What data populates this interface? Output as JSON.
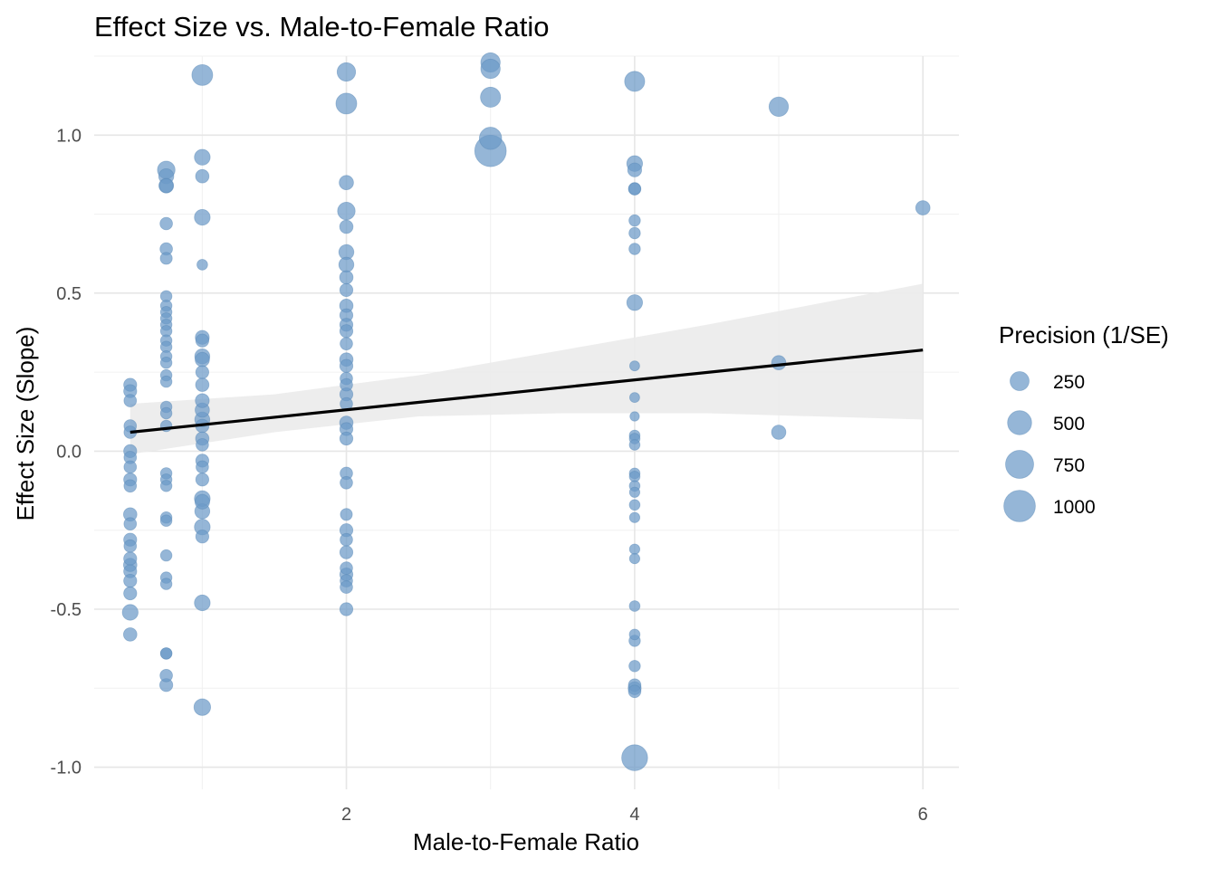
{
  "chart_data": {
    "type": "scatter",
    "title": "Effect Size vs. Male-to-Female Ratio",
    "xlabel": "Male-to-Female Ratio",
    "ylabel": "Effect Size (Slope)",
    "xlim": [
      0.25,
      6.25
    ],
    "ylim": [
      -1.07,
      1.25
    ],
    "x_ticks": [
      2,
      4,
      6
    ],
    "x_tick_labels": [
      "2",
      "4",
      "6"
    ],
    "y_ticks": [
      -1.0,
      -0.5,
      0.0,
      0.5,
      1.0
    ],
    "y_tick_labels": [
      "-1.0",
      "-0.5",
      "0.0",
      "0.5",
      "1.0"
    ],
    "grid": true,
    "point_color": "#6C9AC7",
    "fit_line_color": "#000000",
    "ribbon_color": "#EBEBEB",
    "size_legend": {
      "title": "Precision (1/SE)",
      "position": "right",
      "entries": [
        {
          "label": "250",
          "value": 250
        },
        {
          "label": "500",
          "value": 500
        },
        {
          "label": "750",
          "value": 750
        },
        {
          "label": "1000",
          "value": 1000
        }
      ]
    },
    "fit": {
      "x": [
        0.5,
        6.0
      ],
      "y": [
        0.06,
        0.32
      ],
      "ribbon": [
        {
          "x": 0.5,
          "lower": -0.01,
          "upper": 0.15
        },
        {
          "x": 1.5,
          "lower": 0.06,
          "upper": 0.18
        },
        {
          "x": 2.5,
          "lower": 0.11,
          "upper": 0.24
        },
        {
          "x": 3.5,
          "lower": 0.12,
          "upper": 0.32
        },
        {
          "x": 4.5,
          "lower": 0.12,
          "upper": 0.4
        },
        {
          "x": 6.0,
          "lower": 0.1,
          "upper": 0.53
        }
      ]
    },
    "points": [
      {
        "x": 0.5,
        "y": 0.21,
        "p": 70
      },
      {
        "x": 0.5,
        "y": 0.19,
        "p": 70
      },
      {
        "x": 0.5,
        "y": 0.16,
        "p": 60
      },
      {
        "x": 0.5,
        "y": 0.08,
        "p": 60
      },
      {
        "x": 0.5,
        "y": 0.06,
        "p": 60
      },
      {
        "x": 0.5,
        "y": 0.0,
        "p": 70
      },
      {
        "x": 0.5,
        "y": -0.02,
        "p": 60
      },
      {
        "x": 0.5,
        "y": -0.05,
        "p": 60
      },
      {
        "x": 0.5,
        "y": -0.09,
        "p": 70
      },
      {
        "x": 0.5,
        "y": -0.11,
        "p": 60
      },
      {
        "x": 0.5,
        "y": -0.2,
        "p": 80
      },
      {
        "x": 0.5,
        "y": -0.23,
        "p": 60
      },
      {
        "x": 0.5,
        "y": -0.28,
        "p": 70
      },
      {
        "x": 0.5,
        "y": -0.3,
        "p": 60
      },
      {
        "x": 0.5,
        "y": -0.34,
        "p": 70
      },
      {
        "x": 0.5,
        "y": -0.36,
        "p": 80
      },
      {
        "x": 0.5,
        "y": -0.38,
        "p": 70
      },
      {
        "x": 0.5,
        "y": -0.41,
        "p": 70
      },
      {
        "x": 0.5,
        "y": -0.45,
        "p": 70
      },
      {
        "x": 0.5,
        "y": -0.51,
        "p": 140
      },
      {
        "x": 0.5,
        "y": -0.58,
        "p": 80
      },
      {
        "x": 0.75,
        "y": 0.89,
        "p": 200
      },
      {
        "x": 0.75,
        "y": 0.87,
        "p": 120
      },
      {
        "x": 0.75,
        "y": 0.84,
        "p": 110
      },
      {
        "x": 0.75,
        "y": 0.84,
        "p": 90
      },
      {
        "x": 0.75,
        "y": 0.72,
        "p": 60
      },
      {
        "x": 0.75,
        "y": 0.64,
        "p": 60
      },
      {
        "x": 0.75,
        "y": 0.61,
        "p": 50
      },
      {
        "x": 0.75,
        "y": 0.49,
        "p": 40
      },
      {
        "x": 0.75,
        "y": 0.46,
        "p": 40
      },
      {
        "x": 0.75,
        "y": 0.44,
        "p": 40
      },
      {
        "x": 0.75,
        "y": 0.42,
        "p": 40
      },
      {
        "x": 0.75,
        "y": 0.4,
        "p": 40
      },
      {
        "x": 0.75,
        "y": 0.38,
        "p": 40
      },
      {
        "x": 0.75,
        "y": 0.35,
        "p": 40
      },
      {
        "x": 0.75,
        "y": 0.33,
        "p": 40
      },
      {
        "x": 0.75,
        "y": 0.3,
        "p": 40
      },
      {
        "x": 0.75,
        "y": 0.28,
        "p": 40
      },
      {
        "x": 0.75,
        "y": 0.24,
        "p": 40
      },
      {
        "x": 0.75,
        "y": 0.22,
        "p": 40
      },
      {
        "x": 0.75,
        "y": 0.14,
        "p": 40
      },
      {
        "x": 0.75,
        "y": 0.12,
        "p": 40
      },
      {
        "x": 0.75,
        "y": 0.08,
        "p": 40
      },
      {
        "x": 0.75,
        "y": -0.07,
        "p": 40
      },
      {
        "x": 0.75,
        "y": -0.09,
        "p": 40
      },
      {
        "x": 0.75,
        "y": -0.11,
        "p": 40
      },
      {
        "x": 0.75,
        "y": -0.21,
        "p": 40
      },
      {
        "x": 0.75,
        "y": -0.22,
        "p": 40
      },
      {
        "x": 0.75,
        "y": -0.33,
        "p": 40
      },
      {
        "x": 0.75,
        "y": -0.4,
        "p": 40
      },
      {
        "x": 0.75,
        "y": -0.42,
        "p": 40
      },
      {
        "x": 0.75,
        "y": -0.64,
        "p": 40
      },
      {
        "x": 0.75,
        "y": -0.64,
        "p": 40
      },
      {
        "x": 0.75,
        "y": -0.71,
        "p": 60
      },
      {
        "x": 0.75,
        "y": -0.74,
        "p": 70
      },
      {
        "x": 1.0,
        "y": 1.19,
        "p": 330
      },
      {
        "x": 1.0,
        "y": 0.93,
        "p": 140
      },
      {
        "x": 1.0,
        "y": 0.87,
        "p": 80
      },
      {
        "x": 1.0,
        "y": 0.74,
        "p": 140
      },
      {
        "x": 1.0,
        "y": 0.59,
        "p": 30
      },
      {
        "x": 1.0,
        "y": 0.36,
        "p": 90
      },
      {
        "x": 1.0,
        "y": 0.35,
        "p": 70
      },
      {
        "x": 1.0,
        "y": 0.3,
        "p": 120
      },
      {
        "x": 1.0,
        "y": 0.29,
        "p": 100
      },
      {
        "x": 1.0,
        "y": 0.25,
        "p": 70
      },
      {
        "x": 1.0,
        "y": 0.21,
        "p": 80
      },
      {
        "x": 1.0,
        "y": 0.16,
        "p": 90
      },
      {
        "x": 1.0,
        "y": 0.13,
        "p": 100
      },
      {
        "x": 1.0,
        "y": 0.1,
        "p": 120
      },
      {
        "x": 1.0,
        "y": 0.08,
        "p": 80
      },
      {
        "x": 1.0,
        "y": 0.04,
        "p": 80
      },
      {
        "x": 1.0,
        "y": 0.02,
        "p": 60
      },
      {
        "x": 1.0,
        "y": -0.03,
        "p": 70
      },
      {
        "x": 1.0,
        "y": -0.05,
        "p": 60
      },
      {
        "x": 1.0,
        "y": -0.09,
        "p": 70
      },
      {
        "x": 1.0,
        "y": -0.15,
        "p": 140
      },
      {
        "x": 1.0,
        "y": -0.16,
        "p": 110
      },
      {
        "x": 1.0,
        "y": -0.19,
        "p": 120
      },
      {
        "x": 1.0,
        "y": -0.24,
        "p": 140
      },
      {
        "x": 1.0,
        "y": -0.27,
        "p": 70
      },
      {
        "x": 1.0,
        "y": -0.48,
        "p": 140
      },
      {
        "x": 1.0,
        "y": -0.81,
        "p": 170
      },
      {
        "x": 2.0,
        "y": 1.2,
        "p": 230
      },
      {
        "x": 2.0,
        "y": 1.1,
        "p": 330
      },
      {
        "x": 2.0,
        "y": 0.85,
        "p": 100
      },
      {
        "x": 2.0,
        "y": 0.76,
        "p": 200
      },
      {
        "x": 2.0,
        "y": 0.71,
        "p": 80
      },
      {
        "x": 2.0,
        "y": 0.63,
        "p": 120
      },
      {
        "x": 2.0,
        "y": 0.59,
        "p": 120
      },
      {
        "x": 2.0,
        "y": 0.55,
        "p": 80
      },
      {
        "x": 2.0,
        "y": 0.51,
        "p": 70
      },
      {
        "x": 2.0,
        "y": 0.46,
        "p": 80
      },
      {
        "x": 2.0,
        "y": 0.43,
        "p": 70
      },
      {
        "x": 2.0,
        "y": 0.4,
        "p": 70
      },
      {
        "x": 2.0,
        "y": 0.38,
        "p": 70
      },
      {
        "x": 2.0,
        "y": 0.34,
        "p": 60
      },
      {
        "x": 2.0,
        "y": 0.29,
        "p": 80
      },
      {
        "x": 2.0,
        "y": 0.27,
        "p": 70
      },
      {
        "x": 2.0,
        "y": 0.23,
        "p": 60
      },
      {
        "x": 2.0,
        "y": 0.21,
        "p": 60
      },
      {
        "x": 2.0,
        "y": 0.18,
        "p": 70
      },
      {
        "x": 2.0,
        "y": 0.15,
        "p": 60
      },
      {
        "x": 2.0,
        "y": 0.09,
        "p": 80
      },
      {
        "x": 2.0,
        "y": 0.07,
        "p": 70
      },
      {
        "x": 2.0,
        "y": 0.04,
        "p": 70
      },
      {
        "x": 2.0,
        "y": -0.07,
        "p": 60
      },
      {
        "x": 2.0,
        "y": -0.1,
        "p": 60
      },
      {
        "x": 2.0,
        "y": -0.2,
        "p": 50
      },
      {
        "x": 2.0,
        "y": -0.25,
        "p": 70
      },
      {
        "x": 2.0,
        "y": -0.28,
        "p": 60
      },
      {
        "x": 2.0,
        "y": -0.32,
        "p": 70
      },
      {
        "x": 2.0,
        "y": -0.37,
        "p": 60
      },
      {
        "x": 2.0,
        "y": -0.39,
        "p": 70
      },
      {
        "x": 2.0,
        "y": -0.41,
        "p": 60
      },
      {
        "x": 2.0,
        "y": -0.43,
        "p": 60
      },
      {
        "x": 2.0,
        "y": -0.5,
        "p": 70
      },
      {
        "x": 3.0,
        "y": 1.23,
        "p": 270
      },
      {
        "x": 3.0,
        "y": 1.21,
        "p": 270
      },
      {
        "x": 3.0,
        "y": 1.12,
        "p": 300
      },
      {
        "x": 3.0,
        "y": 0.99,
        "p": 400
      },
      {
        "x": 3.0,
        "y": 0.95,
        "p": 1000
      },
      {
        "x": 4.0,
        "y": 1.17,
        "p": 300
      },
      {
        "x": 4.0,
        "y": 0.91,
        "p": 140
      },
      {
        "x": 4.0,
        "y": 0.89,
        "p": 90
      },
      {
        "x": 4.0,
        "y": 0.83,
        "p": 60
      },
      {
        "x": 4.0,
        "y": 0.83,
        "p": 50
      },
      {
        "x": 4.0,
        "y": 0.73,
        "p": 40
      },
      {
        "x": 4.0,
        "y": 0.69,
        "p": 40
      },
      {
        "x": 4.0,
        "y": 0.64,
        "p": 40
      },
      {
        "x": 4.0,
        "y": 0.47,
        "p": 140
      },
      {
        "x": 4.0,
        "y": 0.27,
        "p": 20
      },
      {
        "x": 4.0,
        "y": 0.17,
        "p": 20
      },
      {
        "x": 4.0,
        "y": 0.11,
        "p": 15
      },
      {
        "x": 4.0,
        "y": 0.05,
        "p": 30
      },
      {
        "x": 4.0,
        "y": 0.04,
        "p": 30
      },
      {
        "x": 4.0,
        "y": 0.02,
        "p": 30
      },
      {
        "x": 4.0,
        "y": -0.07,
        "p": 30
      },
      {
        "x": 4.0,
        "y": -0.08,
        "p": 30
      },
      {
        "x": 4.0,
        "y": -0.11,
        "p": 30
      },
      {
        "x": 4.0,
        "y": -0.13,
        "p": 25
      },
      {
        "x": 4.0,
        "y": -0.17,
        "p": 30
      },
      {
        "x": 4.0,
        "y": -0.21,
        "p": 25
      },
      {
        "x": 4.0,
        "y": -0.31,
        "p": 25
      },
      {
        "x": 4.0,
        "y": -0.34,
        "p": 25
      },
      {
        "x": 4.0,
        "y": -0.49,
        "p": 30
      },
      {
        "x": 4.0,
        "y": -0.58,
        "p": 30
      },
      {
        "x": 4.0,
        "y": -0.6,
        "p": 40
      },
      {
        "x": 4.0,
        "y": -0.68,
        "p": 40
      },
      {
        "x": 4.0,
        "y": -0.74,
        "p": 60
      },
      {
        "x": 4.0,
        "y": -0.75,
        "p": 70
      },
      {
        "x": 4.0,
        "y": -0.76,
        "p": 60
      },
      {
        "x": 4.0,
        "y": -0.97,
        "p": 600
      },
      {
        "x": 5.0,
        "y": 1.09,
        "p": 270
      },
      {
        "x": 5.0,
        "y": 0.28,
        "p": 100
      },
      {
        "x": 5.0,
        "y": 0.06,
        "p": 100
      },
      {
        "x": 6.0,
        "y": 0.77,
        "p": 100
      }
    ]
  }
}
